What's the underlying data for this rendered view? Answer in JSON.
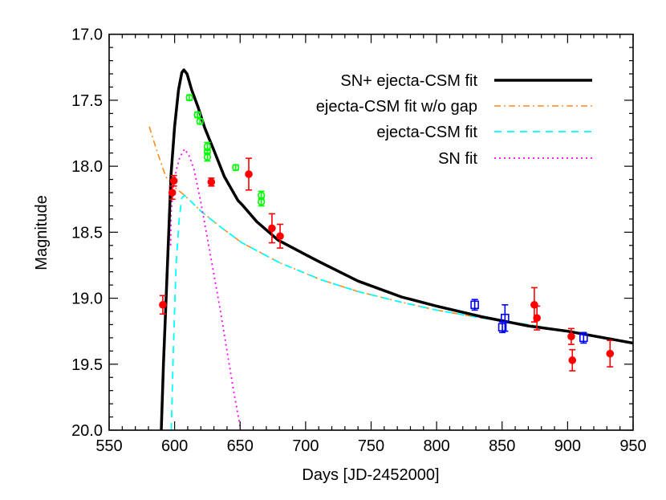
{
  "chart_data": {
    "type": "scatter",
    "title": "",
    "xlabel": "Days [JD-2452000]",
    "ylabel": "Magnitude",
    "xlim": [
      550,
      950
    ],
    "ylim": [
      17.0,
      20.0
    ],
    "y_inverted": true,
    "x_ticks": [
      550,
      600,
      650,
      700,
      750,
      800,
      850,
      900,
      950
    ],
    "x_tick_labels": [
      "550",
      "600",
      "650",
      "700",
      "750",
      "800",
      "850",
      "900",
      "950"
    ],
    "y_ticks": [
      17.0,
      17.5,
      18.0,
      18.5,
      19.0,
      19.5,
      20.0
    ],
    "y_tick_labels": [
      "17.0",
      "17.5",
      "18.0",
      "18.5",
      "19.0",
      "19.5",
      "20.0"
    ],
    "grid": false,
    "legend_position": "top-right",
    "curves": [
      {
        "name": "SN+ ejecta-CSM fit",
        "color": "#000000",
        "style": "solid",
        "x": [
          589.8,
          591.5,
          593.3,
          595.5,
          597.3,
          600,
          603,
          605.5,
          607,
          609.5,
          613,
          617.8,
          623,
          630,
          638,
          648.4,
          651.4,
          662.7,
          679,
          700,
          711.7,
          740,
          773,
          800,
          834.2,
          870,
          900,
          950
        ],
        "y": [
          20.0,
          19.5,
          19.05,
          18.5,
          18.06,
          17.7,
          17.42,
          17.29,
          17.27,
          17.3,
          17.42,
          17.55,
          17.71,
          17.88,
          18.08,
          18.26,
          18.29,
          18.42,
          18.56,
          18.67,
          18.73,
          18.87,
          18.99,
          19.06,
          19.14,
          19.21,
          19.25,
          19.34
        ]
      },
      {
        "name": "ejecta-CSM fit w/o gap",
        "color": "#ff8c1a",
        "style": "dashdot",
        "x": [
          580.6,
          587,
          593.3,
          600,
          607.6,
          620,
          635,
          651.4,
          680,
          711.7,
          740,
          773,
          800,
          834.2,
          870,
          900
        ],
        "y": [
          17.7,
          17.9,
          18.08,
          18.16,
          18.22,
          18.34,
          18.46,
          18.58,
          18.73,
          18.86,
          18.95,
          19.03,
          19.09,
          19.15,
          19.2,
          19.25
        ]
      },
      {
        "name": "ejecta-CSM fit",
        "color": "#00ffff",
        "style": "dashed",
        "x": [
          597.4,
          599,
          601.1,
          603.5,
          605.5,
          607.6,
          620,
          635,
          651.4,
          680,
          711.7,
          740,
          773,
          800,
          834.2,
          870,
          900
        ],
        "y": [
          20.0,
          19.4,
          18.75,
          18.4,
          18.24,
          18.22,
          18.34,
          18.46,
          18.58,
          18.73,
          18.86,
          18.95,
          19.03,
          19.09,
          19.15,
          19.2,
          19.25
        ]
      },
      {
        "name": "SN fit",
        "color": "#ff00ff",
        "style": "dotted",
        "x": [
          597,
          597.2,
          599,
          601.5,
          604,
          607.6,
          611,
          614.7,
          619.8,
          624.9,
          630,
          635,
          640,
          645,
          650.5
        ],
        "y": [
          18.6,
          18.36,
          18.15,
          18.02,
          17.93,
          17.87,
          17.92,
          18.02,
          18.26,
          18.54,
          18.82,
          19.1,
          19.4,
          19.7,
          20.0
        ]
      }
    ],
    "points": [
      {
        "color": "#ff0000",
        "marker": "filled-circle",
        "x": [
          591.0,
          598.2,
          599.4,
          628.0,
          656.6,
          674.3,
          680.5,
          874.6,
          876.6,
          902.8,
          903.6,
          932.4
        ],
        "y": [
          19.05,
          18.2,
          18.11,
          18.12,
          18.06,
          18.47,
          18.53,
          19.05,
          19.15,
          19.29,
          19.47,
          19.42
        ],
        "err": [
          0.07,
          0.05,
          0.04,
          0.03,
          0.12,
          0.11,
          0.09,
          0.13,
          0.09,
          0.06,
          0.08,
          0.1
        ]
      },
      {
        "color": "#00ff00",
        "marker": "open-circle",
        "x": [
          611.3,
          617.4,
          619.4,
          625.0,
          625.0,
          625.0,
          646.6,
          666.2,
          666.2
        ],
        "y": [
          17.48,
          17.61,
          17.66,
          17.85,
          17.89,
          17.93,
          18.01,
          18.22,
          18.27
        ],
        "err": [
          0.02,
          0.02,
          0.02,
          0.03,
          0.02,
          0.03,
          0.02,
          0.03,
          0.03
        ]
      },
      {
        "color": "#0000ff",
        "marker": "open-square",
        "x": [
          829.1,
          850.2,
          852.2,
          912.2
        ],
        "y": [
          19.05,
          19.22,
          19.15,
          19.3
        ],
        "err": [
          0.04,
          0.04,
          0.1,
          0.04
        ]
      }
    ]
  }
}
